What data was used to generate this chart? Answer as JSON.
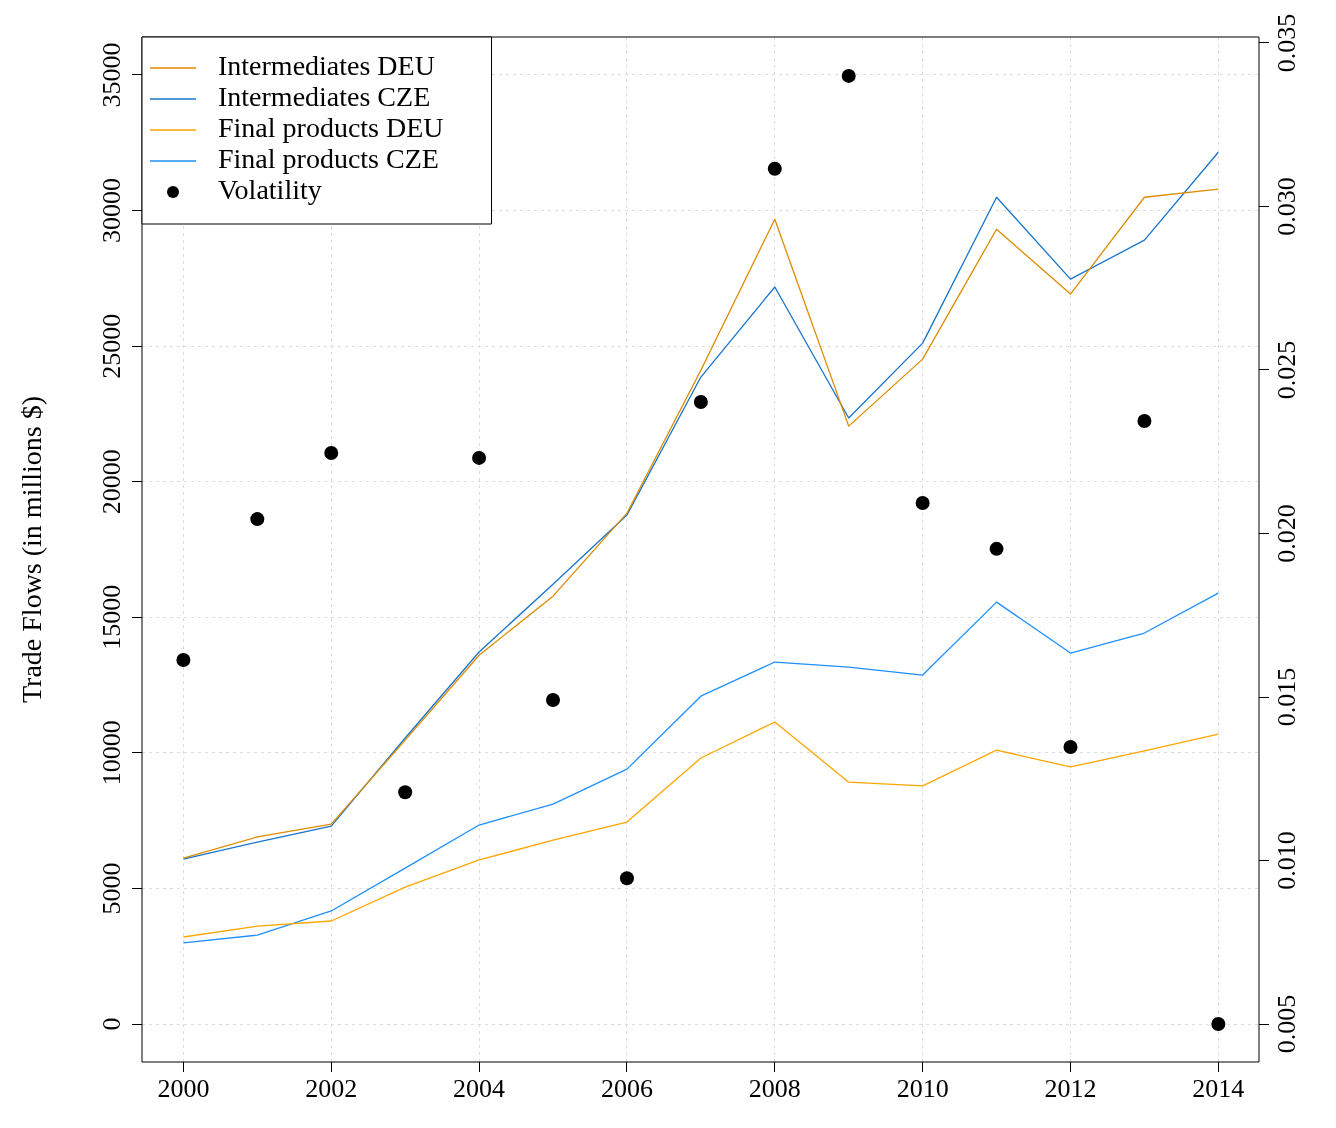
{
  "chart_data": {
    "type": "line",
    "ylabel": "Trade Flows (in millions $)",
    "x": [
      2000,
      2001,
      2002,
      2003,
      2004,
      2005,
      2006,
      2007,
      2008,
      2009,
      2010,
      2011,
      2012,
      2013,
      2014
    ],
    "xlim": [
      1999.44,
      2014.55
    ],
    "xticks": [
      2000,
      2002,
      2004,
      2006,
      2008,
      2010,
      2012,
      2014
    ],
    "ylim": [
      -1400,
      36400
    ],
    "yticks": [
      0,
      5000,
      10000,
      15000,
      20000,
      25000,
      30000,
      35000
    ],
    "y2lim": [
      0.00384,
      0.03518
    ],
    "y2ticks": [
      {
        "value": 0.005,
        "label": "0.005"
      },
      {
        "value": 0.01,
        "label": "0.010"
      },
      {
        "value": 0.015,
        "label": "0.015"
      },
      {
        "value": 0.02,
        "label": "0.020"
      },
      {
        "value": 0.025,
        "label": "0.025"
      },
      {
        "value": 0.03,
        "label": "0.030"
      },
      {
        "value": 0.035,
        "label": "0.035"
      }
    ],
    "grid": true,
    "legend": "top left",
    "series": [
      {
        "name": "Intermediates DEU",
        "type": "line",
        "marker": "none",
        "color": "#dd8c00",
        "values": [
          6120,
          6900,
          7370,
          10470,
          13600,
          15780,
          18840,
          24110,
          29680,
          22050,
          24520,
          29310,
          26920,
          30490,
          30790
        ]
      },
      {
        "name": "Intermediates CZE",
        "type": "line",
        "marker": "none",
        "color": "#1874cd",
        "values": [
          6080,
          6710,
          7300,
          10550,
          13720,
          16220,
          18770,
          23860,
          27180,
          22350,
          25110,
          30490,
          27470,
          28910,
          32150
        ]
      },
      {
        "name": "Final products DEU",
        "type": "line",
        "marker": "none",
        "color": "#ffa500",
        "values": [
          3210,
          3610,
          3800,
          5050,
          6050,
          6780,
          7450,
          9810,
          11140,
          8920,
          8780,
          10100,
          9480,
          10070,
          10690
        ]
      },
      {
        "name": "Final products CZE",
        "type": "line",
        "marker": "none",
        "color": "#1e90ff",
        "values": [
          2990,
          3280,
          4170,
          5750,
          7340,
          8110,
          9400,
          12090,
          13350,
          13160,
          12870,
          15560,
          13680,
          14420,
          15890
        ]
      },
      {
        "name": "Volatility",
        "type": "scatter",
        "axis": "y2",
        "marker": "circle",
        "color": "#000000",
        "values": [
          0.01613,
          0.02044,
          0.02246,
          0.01209,
          0.02231,
          0.01491,
          0.00946,
          0.02402,
          0.03115,
          0.03399,
          0.02093,
          0.01953,
          0.01347,
          0.02344,
          0.005
        ]
      }
    ]
  }
}
